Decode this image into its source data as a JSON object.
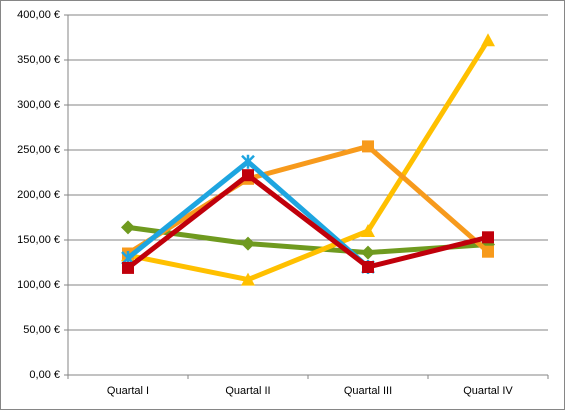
{
  "chart_data": {
    "type": "line",
    "categories": [
      "Quartal I",
      "Quartal II",
      "Quartal III",
      "Quartal IV"
    ],
    "series": [
      {
        "color": "#6f9a1f",
        "marker": "diamond",
        "values": [
          164,
          146,
          136,
          145
        ]
      },
      {
        "color": "#ffc000",
        "marker": "triangle",
        "values": [
          133,
          106,
          160,
          372
        ]
      },
      {
        "color": "#f79a1c",
        "marker": "square",
        "values": [
          135,
          218,
          254,
          137
        ]
      },
      {
        "color": "#1ea5e0",
        "marker": "star",
        "values": [
          130,
          237,
          120,
          null
        ]
      },
      {
        "color": "#c0000b",
        "marker": "square",
        "values": [
          119,
          222,
          120,
          153
        ]
      }
    ],
    "ylim": [
      0,
      400
    ],
    "yticks": [
      {
        "value": 0,
        "label": "0,00 €"
      },
      {
        "value": 50,
        "label": "50,00 €"
      },
      {
        "value": 100,
        "label": "100,00 €"
      },
      {
        "value": 150,
        "label": "150,00 €"
      },
      {
        "value": 200,
        "label": "200,00 €"
      },
      {
        "value": 250,
        "label": "250,00 €"
      },
      {
        "value": 300,
        "label": "300,00 €"
      },
      {
        "value": 350,
        "label": "350,00 €"
      },
      {
        "value": 400,
        "label": "400,00 €"
      }
    ],
    "grid": true
  }
}
